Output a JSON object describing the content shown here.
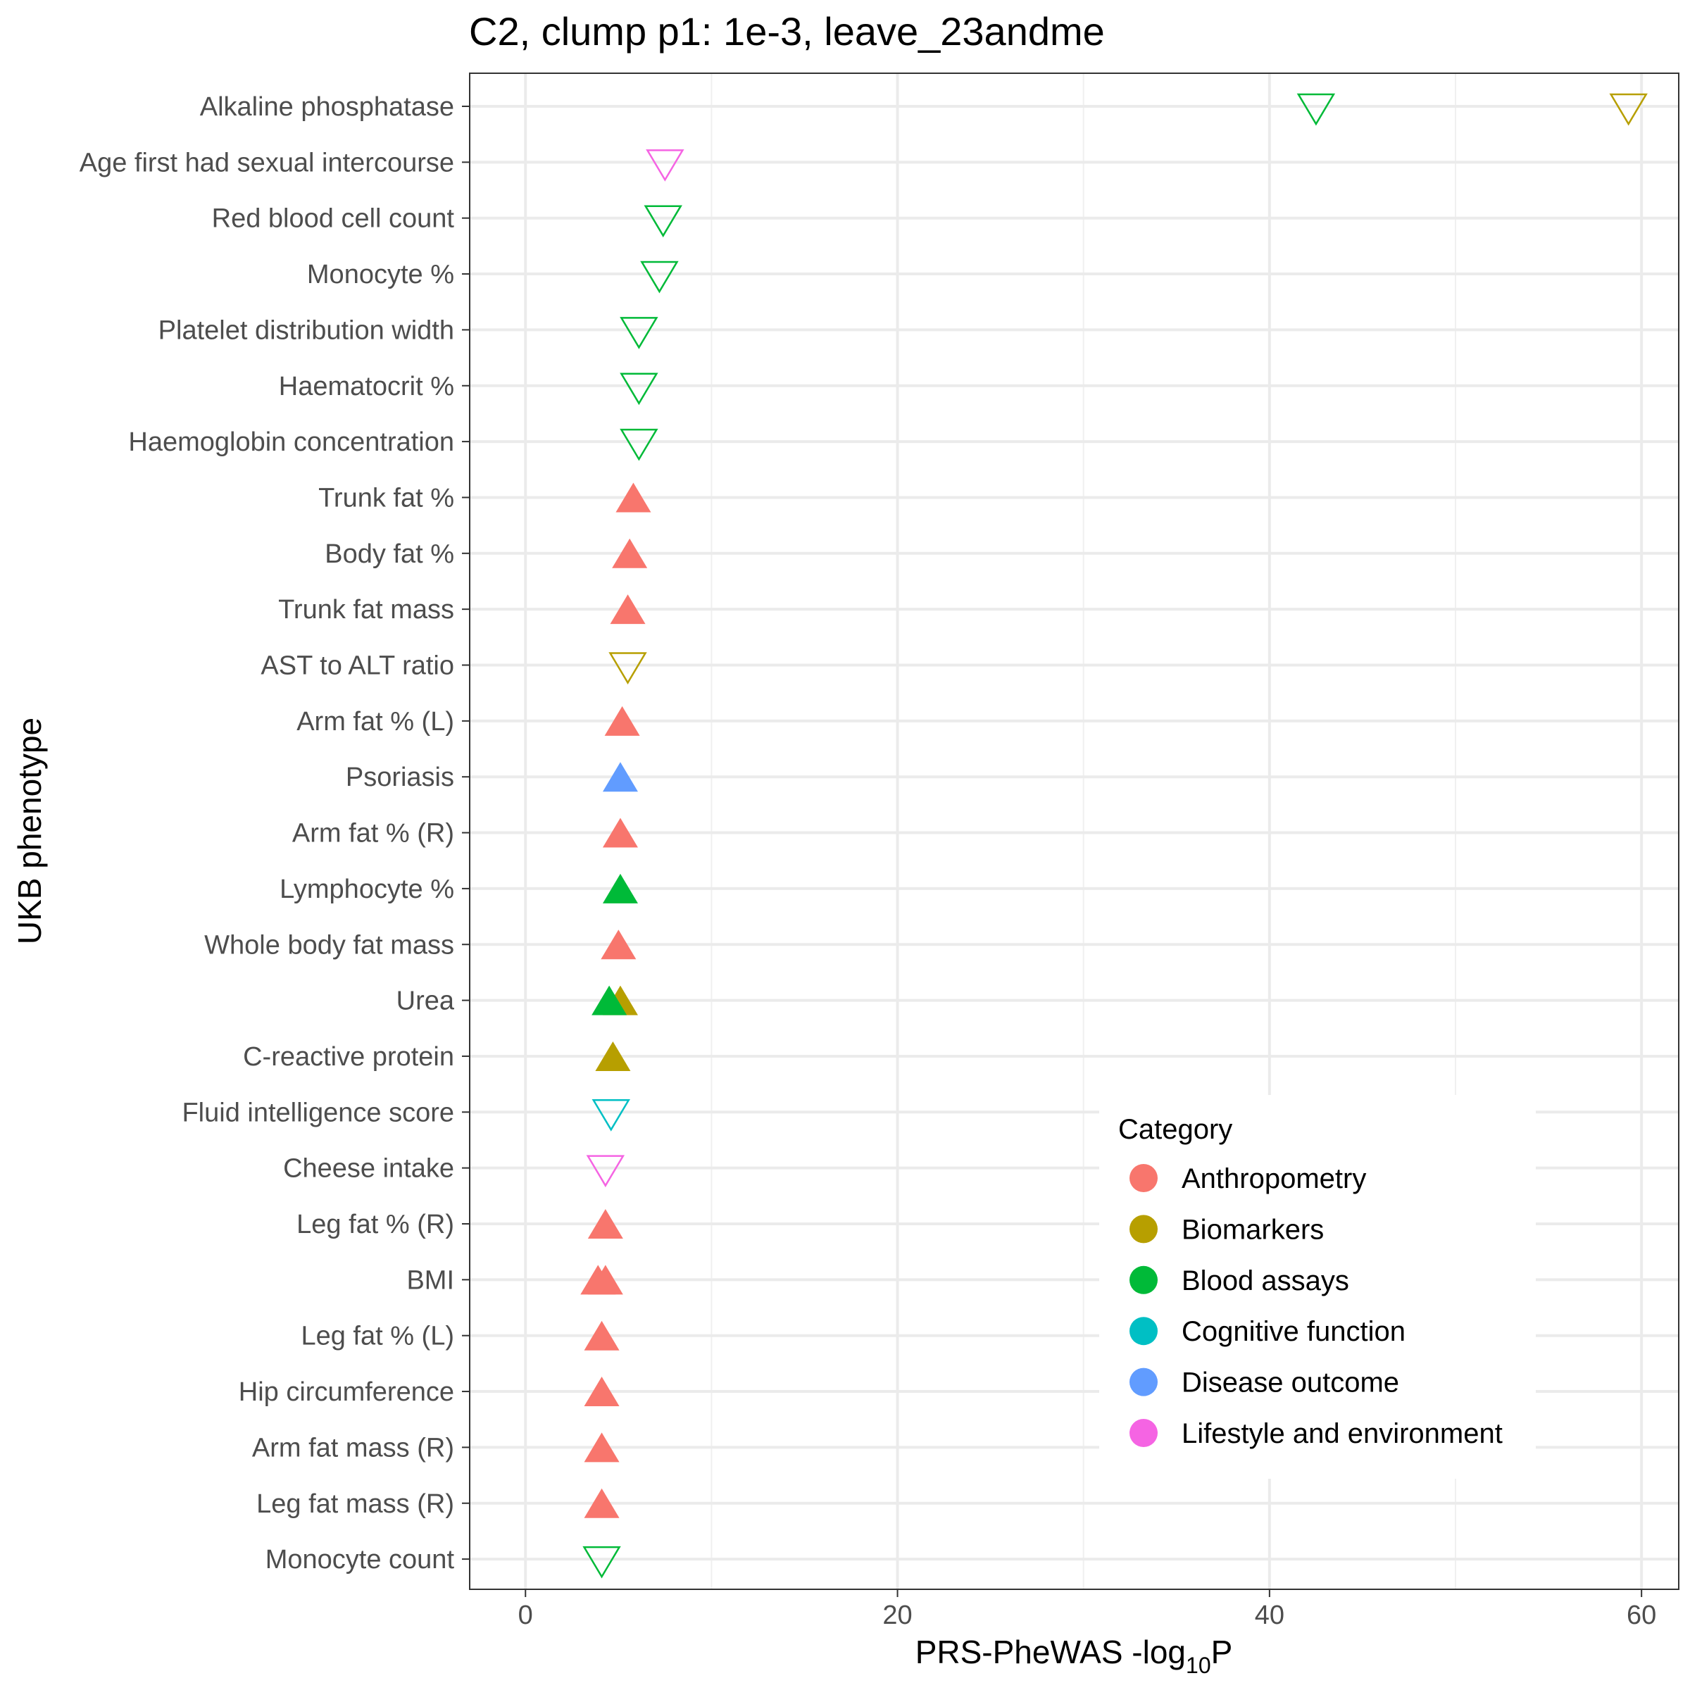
{
  "chart_data": {
    "type": "scatter",
    "title": "C2, clump p1: 1e-3, leave_23andme",
    "xlabel": "PRS-PheWAS -log",
    "xlabel_subscript": "10",
    "xlabel_suffix": "P",
    "ylabel": "UKB phenotype",
    "xlim": [
      -3,
      62
    ],
    "xticks": [
      0,
      20,
      40,
      60
    ],
    "grid": true,
    "legend": {
      "title": "Category",
      "placement": "bottom-right",
      "entries": [
        {
          "name": "Anthropometry",
          "color": "#F8766D"
        },
        {
          "name": "Biomarkers",
          "color": "#B79F00"
        },
        {
          "name": "Blood assays",
          "color": "#00BA38"
        },
        {
          "name": "Cognitive function",
          "color": "#00BFC4"
        },
        {
          "name": "Disease outcome",
          "color": "#619CFF"
        },
        {
          "name": "Lifestyle and environment",
          "color": "#F564E3"
        }
      ]
    },
    "phenotypes": [
      "Alkaline phosphatase",
      "Age first had sexual intercourse",
      "Red blood cell count",
      "Monocyte %",
      "Platelet distribution width",
      "Haematocrit %",
      "Haemoglobin concentration",
      "Trunk fat %",
      "Body fat %",
      "Trunk fat mass",
      "AST to ALT ratio",
      "Arm fat % (L)",
      "Psoriasis",
      "Arm fat % (R)",
      "Lymphocyte %",
      "Whole body fat mass",
      "Urea",
      "C-reactive protein",
      "Fluid intelligence score",
      "Cheese intake",
      "Leg fat % (R)",
      "BMI",
      "Leg fat % (L)",
      "Hip circumference",
      "Arm fat mass (R)",
      "Leg fat mass (R)",
      "Monocyte count"
    ],
    "points": [
      {
        "phenotype": "Alkaline phosphatase",
        "x": 59.3,
        "category": "Biomarkers",
        "direction": "down"
      },
      {
        "phenotype": "Alkaline phosphatase",
        "x": 42.5,
        "category": "Blood assays",
        "direction": "down"
      },
      {
        "phenotype": "Age first had sexual intercourse",
        "x": 7.5,
        "category": "Lifestyle and environment",
        "direction": "down"
      },
      {
        "phenotype": "Red blood cell count",
        "x": 7.4,
        "category": "Blood assays",
        "direction": "down"
      },
      {
        "phenotype": "Monocyte %",
        "x": 7.2,
        "category": "Blood assays",
        "direction": "down"
      },
      {
        "phenotype": "Platelet distribution width",
        "x": 6.1,
        "category": "Blood assays",
        "direction": "down"
      },
      {
        "phenotype": "Haematocrit %",
        "x": 6.1,
        "category": "Blood assays",
        "direction": "down"
      },
      {
        "phenotype": "Haemoglobin concentration",
        "x": 6.1,
        "category": "Blood assays",
        "direction": "down"
      },
      {
        "phenotype": "Trunk fat %",
        "x": 5.8,
        "category": "Anthropometry",
        "direction": "up"
      },
      {
        "phenotype": "Body fat %",
        "x": 5.6,
        "category": "Anthropometry",
        "direction": "up"
      },
      {
        "phenotype": "Trunk fat mass",
        "x": 5.5,
        "category": "Anthropometry",
        "direction": "up"
      },
      {
        "phenotype": "AST to ALT ratio",
        "x": 5.5,
        "category": "Biomarkers",
        "direction": "down"
      },
      {
        "phenotype": "Arm fat % (L)",
        "x": 5.2,
        "category": "Anthropometry",
        "direction": "up"
      },
      {
        "phenotype": "Psoriasis",
        "x": 5.1,
        "category": "Disease outcome",
        "direction": "up"
      },
      {
        "phenotype": "Arm fat % (R)",
        "x": 5.1,
        "category": "Anthropometry",
        "direction": "up"
      },
      {
        "phenotype": "Lymphocyte %",
        "x": 5.1,
        "category": "Blood assays",
        "direction": "up"
      },
      {
        "phenotype": "Whole body fat mass",
        "x": 5.0,
        "category": "Anthropometry",
        "direction": "up"
      },
      {
        "phenotype": "Urea",
        "x": 5.1,
        "category": "Biomarkers",
        "direction": "up"
      },
      {
        "phenotype": "Urea",
        "x": 4.5,
        "category": "Blood assays",
        "direction": "up"
      },
      {
        "phenotype": "C-reactive protein",
        "x": 4.7,
        "category": "Biomarkers",
        "direction": "up"
      },
      {
        "phenotype": "Fluid intelligence score",
        "x": 4.6,
        "category": "Cognitive function",
        "direction": "down"
      },
      {
        "phenotype": "Cheese intake",
        "x": 4.3,
        "category": "Lifestyle and environment",
        "direction": "down"
      },
      {
        "phenotype": "Leg fat % (R)",
        "x": 4.3,
        "category": "Anthropometry",
        "direction": "up"
      },
      {
        "phenotype": "BMI",
        "x": 4.3,
        "category": "Anthropometry",
        "direction": "up"
      },
      {
        "phenotype": "BMI",
        "x": 3.9,
        "category": "Anthropometry",
        "direction": "up"
      },
      {
        "phenotype": "Leg fat % (L)",
        "x": 4.1,
        "category": "Anthropometry",
        "direction": "up"
      },
      {
        "phenotype": "Hip circumference",
        "x": 4.1,
        "category": "Anthropometry",
        "direction": "up"
      },
      {
        "phenotype": "Arm fat mass (R)",
        "x": 4.1,
        "category": "Anthropometry",
        "direction": "up"
      },
      {
        "phenotype": "Leg fat mass (R)",
        "x": 4.1,
        "category": "Anthropometry",
        "direction": "up"
      },
      {
        "phenotype": "Monocyte count",
        "x": 4.1,
        "category": "Blood assays",
        "direction": "down"
      }
    ]
  }
}
